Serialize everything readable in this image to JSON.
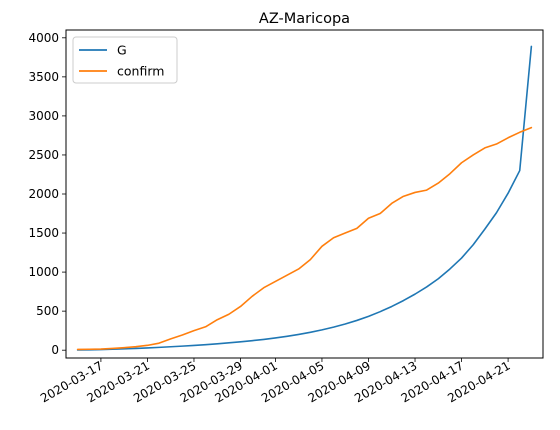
{
  "chart_data": {
    "type": "line",
    "title": "AZ-Maricopa",
    "xlabel": "",
    "ylabel": "",
    "x_axis": {
      "kind": "date",
      "range": [
        "2020-03-14",
        "2020-04-24"
      ],
      "tick_dates": [
        "2020-03-17",
        "2020-03-21",
        "2020-03-25",
        "2020-03-29",
        "2020-04-01",
        "2020-04-05",
        "2020-04-09",
        "2020-04-13",
        "2020-04-17",
        "2020-04-21"
      ],
      "tick_labels": [
        "2020-03-17",
        "2020-03-21",
        "2020-03-25",
        "2020-03-29",
        "2020-04-01",
        "2020-04-05",
        "2020-04-09",
        "2020-04-13",
        "2020-04-17",
        "2020-04-21"
      ]
    },
    "y_axis": {
      "range": [
        -100,
        4100
      ],
      "ticks": [
        0,
        500,
        1000,
        1500,
        2000,
        2500,
        3000,
        3500,
        4000
      ],
      "tick_labels": [
        "0",
        "500",
        "1000",
        "1500",
        "2000",
        "2500",
        "3000",
        "3500",
        "4000"
      ]
    },
    "grid": false,
    "legend": {
      "position": "top-left"
    },
    "series": [
      {
        "name": "G",
        "color": "#1f77b4",
        "x": [
          "2020-03-15",
          "2020-03-16",
          "2020-03-17",
          "2020-03-18",
          "2020-03-19",
          "2020-03-20",
          "2020-03-21",
          "2020-03-22",
          "2020-03-23",
          "2020-03-24",
          "2020-03-25",
          "2020-03-26",
          "2020-03-27",
          "2020-03-28",
          "2020-03-29",
          "2020-03-30",
          "2020-03-31",
          "2020-04-01",
          "2020-04-02",
          "2020-04-03",
          "2020-04-04",
          "2020-04-05",
          "2020-04-06",
          "2020-04-07",
          "2020-04-08",
          "2020-04-09",
          "2020-04-10",
          "2020-04-11",
          "2020-04-12",
          "2020-04-13",
          "2020-04-14",
          "2020-04-15",
          "2020-04-16",
          "2020-04-17",
          "2020-04-18",
          "2020-04-19",
          "2020-04-20",
          "2020-04-21",
          "2020-04-22",
          "2020-04-23"
        ],
        "y": [
          3,
          5,
          8,
          12,
          17,
          23,
          29,
          36,
          44,
          52,
          61,
          71,
          82,
          94,
          107,
          122,
          138,
          157,
          178,
          202,
          229,
          260,
          295,
          335,
          381,
          433,
          493,
          560,
          635,
          718,
          810,
          915,
          1040,
          1180,
          1350,
          1550,
          1760,
          2010,
          2300,
          3890
        ]
      },
      {
        "name": "confirm",
        "color": "#ff7f0e",
        "x": [
          "2020-03-15",
          "2020-03-16",
          "2020-03-17",
          "2020-03-18",
          "2020-03-19",
          "2020-03-20",
          "2020-03-21",
          "2020-03-22",
          "2020-03-23",
          "2020-03-24",
          "2020-03-25",
          "2020-03-26",
          "2020-03-27",
          "2020-03-28",
          "2020-03-29",
          "2020-03-30",
          "2020-03-31",
          "2020-04-01",
          "2020-04-02",
          "2020-04-03",
          "2020-04-04",
          "2020-04-05",
          "2020-04-06",
          "2020-04-07",
          "2020-04-08",
          "2020-04-09",
          "2020-04-10",
          "2020-04-11",
          "2020-04-12",
          "2020-04-13",
          "2020-04-14",
          "2020-04-15",
          "2020-04-16",
          "2020-04-17",
          "2020-04-18",
          "2020-04-19",
          "2020-04-20",
          "2020-04-21",
          "2020-04-22",
          "2020-04-23"
        ],
        "y": [
          10,
          12,
          15,
          22,
          32,
          45,
          62,
          90,
          145,
          195,
          250,
          300,
          390,
          460,
          560,
          690,
          800,
          880,
          960,
          1040,
          1160,
          1330,
          1440,
          1500,
          1560,
          1690,
          1750,
          1880,
          1970,
          2020,
          2050,
          2140,
          2260,
          2400,
          2500,
          2590,
          2640,
          2720,
          2790,
          2850
        ]
      }
    ]
  }
}
